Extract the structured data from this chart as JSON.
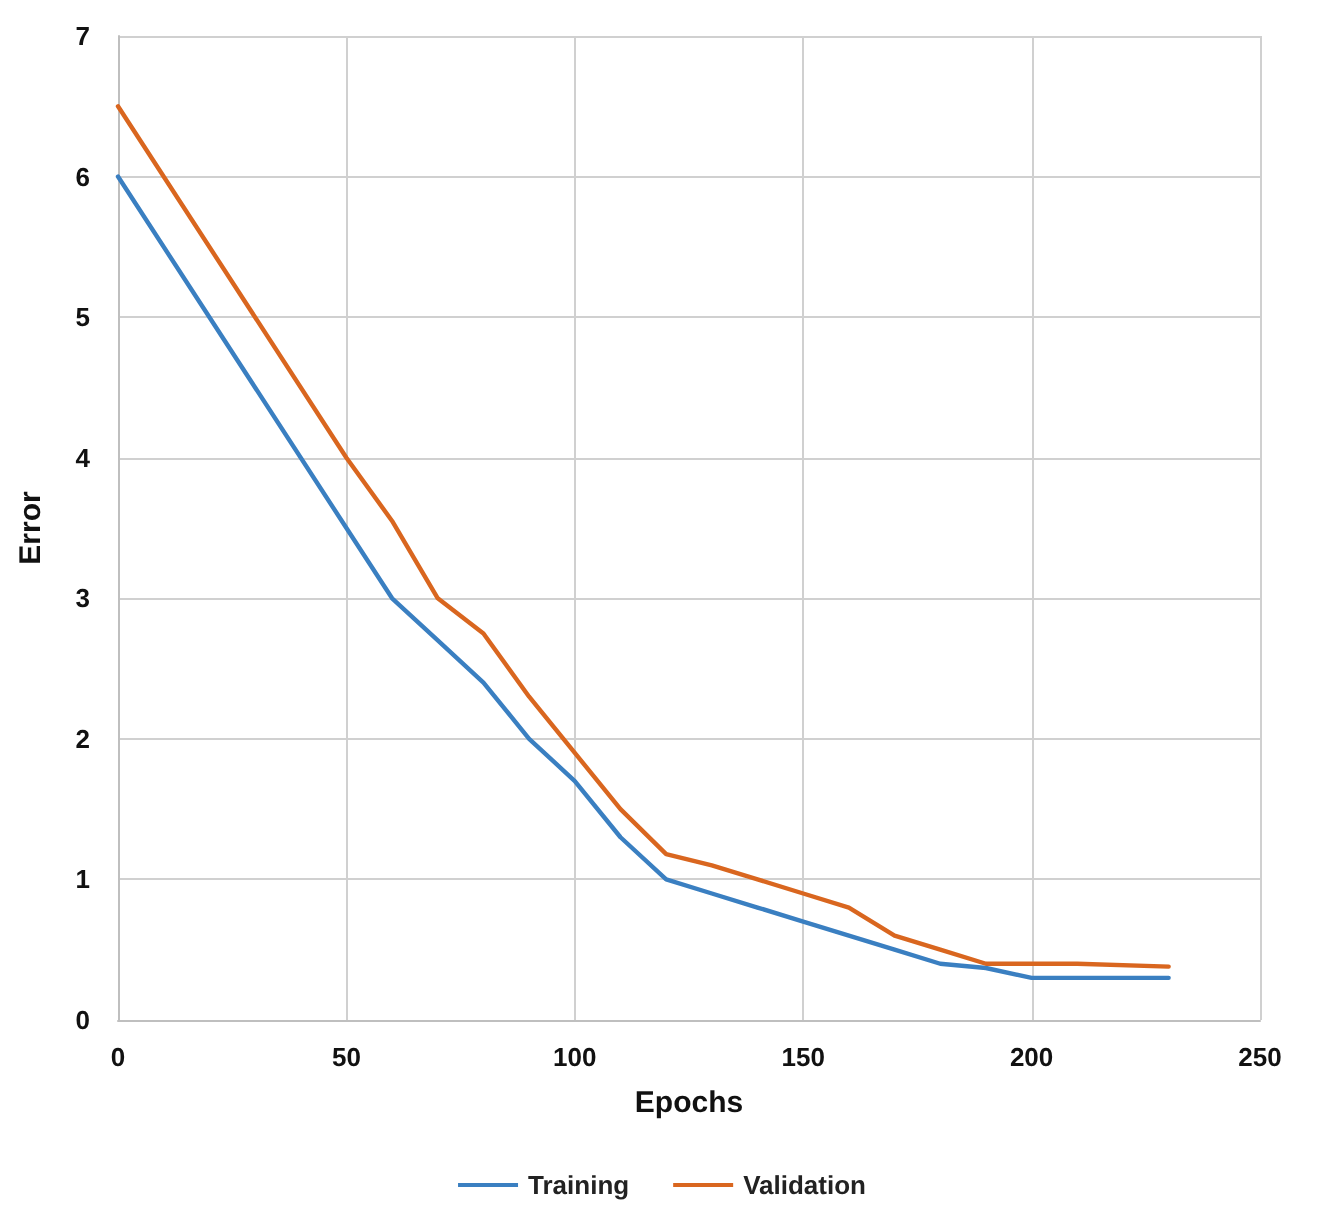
{
  "chart_data": {
    "type": "line",
    "xlabel": "Epochs",
    "ylabel": "Error",
    "xlim": [
      0,
      250
    ],
    "xticks": [
      0,
      50,
      100,
      150,
      200,
      250
    ],
    "ylim": [
      0,
      7
    ],
    "yticks": [
      0,
      1,
      2,
      3,
      4,
      5,
      6,
      7
    ],
    "grid": true,
    "legend": "bottom",
    "marker": "none",
    "line_style": "solid",
    "series": [
      {
        "name": "Training",
        "color": "#3a7fc1",
        "x": [
          0,
          50,
          60,
          70,
          80,
          90,
          100,
          110,
          120,
          130,
          140,
          150,
          160,
          170,
          180,
          190,
          200,
          210,
          230
        ],
        "values": [
          6.0,
          3.5,
          3.0,
          2.7,
          2.4,
          2.0,
          1.7,
          1.3,
          1.0,
          0.9,
          0.8,
          0.7,
          0.6,
          0.5,
          0.4,
          0.37,
          0.3,
          0.3,
          0.3
        ]
      },
      {
        "name": "Validation",
        "color": "#d9661f",
        "x": [
          0,
          50,
          60,
          70,
          80,
          90,
          100,
          110,
          120,
          130,
          140,
          150,
          160,
          170,
          180,
          190,
          200,
          210,
          230
        ],
        "values": [
          6.5,
          4.0,
          3.55,
          3.0,
          2.75,
          2.3,
          1.9,
          1.5,
          1.18,
          1.1,
          1.0,
          0.9,
          0.8,
          0.6,
          0.5,
          0.4,
          0.4,
          0.4,
          0.38
        ]
      }
    ]
  }
}
